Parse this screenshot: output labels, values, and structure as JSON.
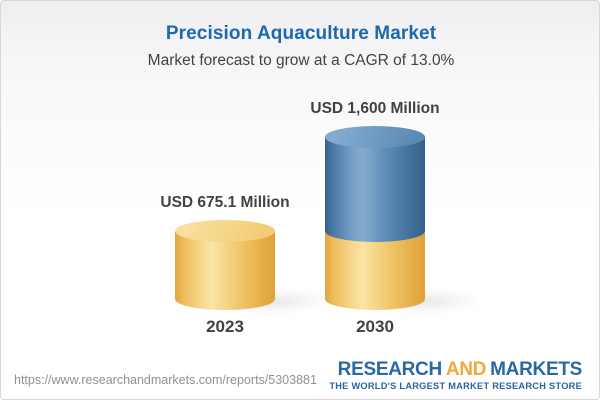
{
  "header": {
    "title": "Precision Aquaculture Market",
    "subtitle": "Market forecast to grow at a CAGR of 13.0%"
  },
  "chart_data": {
    "type": "bar",
    "style": "3d-cylinder",
    "title": "Precision Aquaculture Market",
    "subtitle": "Market forecast to grow at a CAGR of 13.0%",
    "cagr_percent": 13.0,
    "categories": [
      "2023",
      "2030"
    ],
    "values": [
      675.1,
      1600
    ],
    "value_labels": [
      "USD 675.1 Million",
      "USD 1,600 Million"
    ],
    "unit": "USD Million",
    "ylim": [
      0,
      1600
    ],
    "segments": {
      "2023": [
        {
          "color": "#f2c96f",
          "value": 675.1
        }
      ],
      "2030": [
        {
          "color": "#f2c96f",
          "value": 675.1
        },
        {
          "color": "#5586b5",
          "value": 924.9
        }
      ]
    },
    "colors": {
      "base_segment": "#f2c96f",
      "growth_segment": "#5586b5",
      "label_text": "#3f4246",
      "title_blue": "#1e68ae"
    },
    "legend": "none",
    "grid": "off",
    "axes": "hidden"
  },
  "footer": {
    "url": "https://www.researchandmarkets.com/reports/5303881",
    "logo": {
      "word1": "RESEARCH",
      "word2": "AND",
      "word3": "MARKETS",
      "tagline": "THE WORLD'S LARGEST MARKET RESEARCH STORE",
      "blue": "#2a67a5",
      "gold": "#f0a93a"
    }
  }
}
